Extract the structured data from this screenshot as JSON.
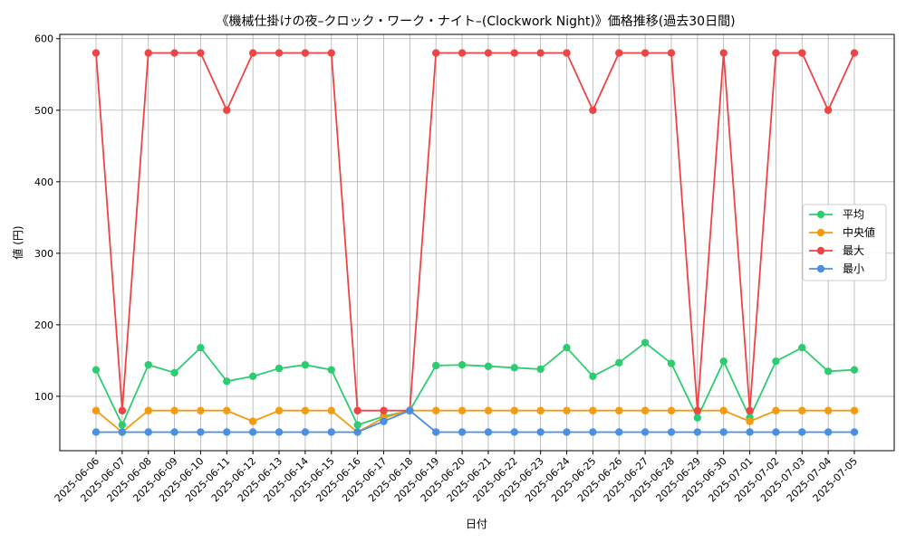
{
  "chart_data": {
    "type": "line",
    "title": "《機械仕掛けの夜–クロック・ワーク・ナイト–(Clockwork Night)》価格推移(過去30日間)",
    "xlabel": "日付",
    "ylabel": "値 (円)",
    "categories": [
      "2025-06-06",
      "2025-06-07",
      "2025-06-08",
      "2025-06-09",
      "2025-06-10",
      "2025-06-11",
      "2025-06-12",
      "2025-06-13",
      "2025-06-14",
      "2025-06-15",
      "2025-06-16",
      "2025-06-17",
      "2025-06-18",
      "2025-06-19",
      "2025-06-20",
      "2025-06-21",
      "2025-06-22",
      "2025-06-23",
      "2025-06-24",
      "2025-06-25",
      "2025-06-26",
      "2025-06-27",
      "2025-06-28",
      "2025-06-29",
      "2025-06-30",
      "2025-07-01",
      "2025-07-02",
      "2025-07-03",
      "2025-07-04",
      "2025-07-05"
    ],
    "ylim": [
      24,
      606
    ],
    "yticks": [
      100,
      200,
      300,
      400,
      500,
      600
    ],
    "grid": true,
    "legend_position": "center-right",
    "series": [
      {
        "name": "平均",
        "color": "#2ecc71",
        "values": [
          137,
          60,
          144,
          133,
          168,
          121,
          128,
          139,
          144,
          137,
          60,
          72,
          80,
          143,
          144,
          142,
          140,
          138,
          168,
          128,
          147,
          175,
          146,
          70,
          149,
          70,
          149,
          168,
          135,
          137
        ]
      },
      {
        "name": "中央値",
        "color": "#f39c12",
        "values": [
          80,
          50,
          80,
          80,
          80,
          80,
          65,
          80,
          80,
          80,
          50,
          70,
          80,
          80,
          80,
          80,
          80,
          80,
          80,
          80,
          80,
          80,
          80,
          80,
          80,
          65,
          80,
          80,
          80,
          80
        ]
      },
      {
        "name": "最大",
        "color": "#ef4444",
        "values": [
          580,
          80,
          580,
          580,
          580,
          500,
          580,
          580,
          580,
          580,
          80,
          80,
          80,
          580,
          580,
          580,
          580,
          580,
          580,
          500,
          580,
          580,
          580,
          80,
          580,
          80,
          580,
          580,
          500,
          580
        ]
      },
      {
        "name": "最小",
        "color": "#4a90e2",
        "values": [
          50,
          50,
          50,
          50,
          50,
          50,
          50,
          50,
          50,
          50,
          50,
          65,
          80,
          50,
          50,
          50,
          50,
          50,
          50,
          50,
          50,
          50,
          50,
          50,
          50,
          50,
          50,
          50,
          50,
          50
        ]
      }
    ]
  }
}
